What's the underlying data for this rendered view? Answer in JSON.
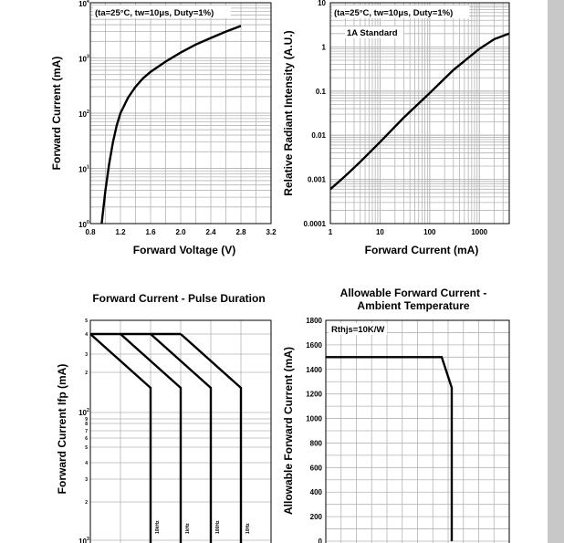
{
  "colors": {
    "grid": "#b4b4b4",
    "frame": "#000000",
    "curve": "#000000",
    "scrollbar": "#c8c8c8"
  },
  "chart_data": [
    {
      "type": "line",
      "xlabel": "Forward Voltage (V)",
      "ylabel": "Forward Current (mA)",
      "annotation": "(ta=25°C, tw=10μs, Duty=1%)",
      "xlim": [
        0.8,
        3.2
      ],
      "ylim": [
        1,
        10000
      ],
      "yscale": "log",
      "x_ticks": [
        "0.8",
        "1.2",
        "1.6",
        "2.0",
        "2.4",
        "2.8",
        "3.2"
      ],
      "y_ticks": [
        "10",
        "10",
        "10",
        "10",
        "10"
      ],
      "y_tick_exponents": [
        "0",
        "1",
        "2",
        "3",
        "4"
      ],
      "grid": true,
      "series": [
        {
          "x": [
            0.95,
            1.0,
            1.05,
            1.1,
            1.15,
            1.2,
            1.3,
            1.4,
            1.5,
            1.6,
            1.8,
            2.0,
            2.2,
            2.4,
            2.6,
            2.8
          ],
          "y": [
            1,
            4,
            12,
            30,
            60,
            100,
            190,
            300,
            430,
            560,
            860,
            1250,
            1750,
            2300,
            3000,
            3800
          ]
        }
      ]
    },
    {
      "type": "line",
      "xlabel": "Forward Current (mA)",
      "ylabel": "Relative Radiant Intensity (A.U.)",
      "annotation": "(ta=25°C, tw=10μs, Duty=1%)",
      "label": "1A Standard",
      "xscale": "log",
      "yscale": "log",
      "xlim": [
        1,
        4000
      ],
      "ylim": [
        0.0001,
        10
      ],
      "x_ticks": [
        "1",
        "10",
        "100",
        "1000"
      ],
      "y_ticks": [
        "0.0001",
        "0.001",
        "0.01",
        "0.1",
        "1",
        "10"
      ],
      "grid": true,
      "series": [
        {
          "x": [
            1,
            2,
            4,
            10,
            30,
            100,
            300,
            1000,
            2000,
            4000
          ],
          "y": [
            0.0006,
            0.0012,
            0.0025,
            0.007,
            0.025,
            0.09,
            0.3,
            0.9,
            1.5,
            2.0
          ]
        }
      ]
    },
    {
      "type": "line",
      "title": "Forward Current - Pulse Duration",
      "ylabel": "Forward Current Ifp (mA)",
      "y_ticks": [
        "10",
        "10"
      ],
      "y_tick_exponents": [
        "2",
        "3"
      ],
      "y_minor_labels": [
        "5",
        "4",
        "3",
        "2",
        "9",
        "8",
        "7",
        "6",
        "5",
        "4",
        "3",
        "2"
      ],
      "grid": true,
      "series": [
        {
          "name": "10kHz"
        },
        {
          "name": "1kHz"
        },
        {
          "name": "100Hz"
        },
        {
          "name": "10Hz"
        }
      ]
    },
    {
      "type": "line",
      "title": "Allowable Forward Current -",
      "subtitle": "Ambient Temperature",
      "ylabel": "Allowable Forward Current (mA)",
      "annotation": "Rthjs=10K/W",
      "ylim": [
        0,
        1800
      ],
      "y_ticks": [
        "0",
        "200",
        "400",
        "600",
        "800",
        "1000",
        "1200",
        "1400",
        "1600",
        "1800"
      ],
      "grid": true,
      "series": [
        {
          "y": [
            1500,
            1500,
            1250,
            0
          ]
        }
      ]
    }
  ]
}
